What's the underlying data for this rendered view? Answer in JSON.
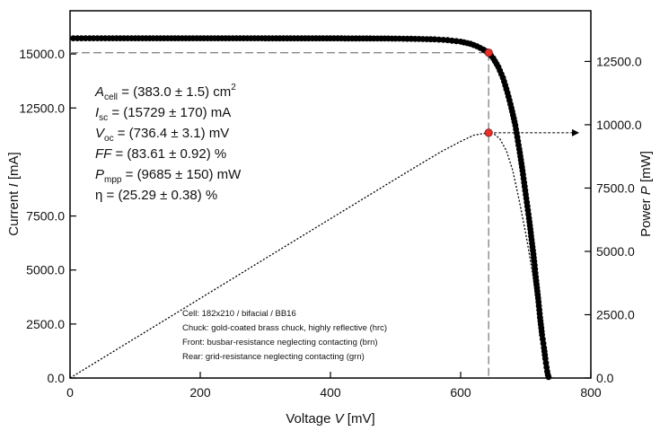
{
  "chart_data": {
    "type": "scatter",
    "xlabel_main": "Voltage ",
    "xlabel_sym": "V",
    "xlabel_unit": " [mV]",
    "ylabel_left_main": "Current ",
    "ylabel_left_sym": "I",
    "ylabel_left_unit": " [mA]",
    "ylabel_right_main": "Power ",
    "ylabel_right_sym": "P",
    "ylabel_right_unit": " [mW]",
    "xlim": [
      0,
      800
    ],
    "ylim_left": [
      0,
      17000
    ],
    "ylim_right": [
      0,
      14500
    ],
    "x_ticks": [
      {
        "value": 0,
        "label": "0"
      },
      {
        "value": 200,
        "label": "200"
      },
      {
        "value": 400,
        "label": "400"
      },
      {
        "value": 600,
        "label": "600"
      },
      {
        "value": 800,
        "label": "800"
      }
    ],
    "y_left_ticks": [
      {
        "value": 0,
        "label": "0.0"
      },
      {
        "value": 2500,
        "label": "2500.0"
      },
      {
        "value": 5000,
        "label": "5000.0"
      },
      {
        "value": 7500,
        "label": "7500.0"
      },
      {
        "value": 12500,
        "label": "12500.0"
      },
      {
        "value": 15000,
        "label": "15000.0"
      }
    ],
    "y_right_ticks": [
      {
        "value": 0,
        "label": "0.0"
      },
      {
        "value": 2500,
        "label": "2500.0"
      },
      {
        "value": 5000,
        "label": "5000.0"
      },
      {
        "value": 7500,
        "label": "7500.0"
      },
      {
        "value": 10000,
        "label": "10000.0"
      },
      {
        "value": 12500,
        "label": "12500.0"
      }
    ],
    "iv_curve": {
      "name": "I-V",
      "x": [
        5,
        30,
        60,
        100,
        150,
        200,
        250,
        300,
        350,
        400,
        450,
        500,
        530,
        560,
        580,
        600,
        615,
        625,
        635,
        643,
        650,
        658,
        665,
        672,
        678,
        684,
        690,
        695,
        700,
        705,
        709,
        713,
        716,
        719,
        722,
        725,
        728,
        730,
        732,
        733,
        734,
        735
      ],
      "y": [
        15729,
        15729,
        15729,
        15729,
        15728,
        15728,
        15727,
        15726,
        15725,
        15723,
        15720,
        15712,
        15700,
        15680,
        15640,
        15570,
        15470,
        15360,
        15200,
        15060,
        14800,
        14400,
        13900,
        13200,
        12500,
        11700,
        10600,
        9600,
        8500,
        7400,
        6400,
        5400,
        4500,
        3700,
        2800,
        2000,
        1400,
        900,
        500,
        300,
        150,
        50
      ]
    },
    "power_curve_x": [
      0,
      50,
      100,
      150,
      200,
      250,
      300,
      350,
      400,
      450,
      500,
      540,
      570,
      600,
      620,
      635,
      645,
      652,
      660,
      670,
      680,
      690,
      700,
      710,
      718,
      725,
      730,
      735
    ],
    "power_curve_y": [
      0,
      786,
      1573,
      2359,
      3146,
      3932,
      4718,
      5504,
      6289,
      7074,
      7856,
      8478,
      8938,
      9342,
      9585,
      9652,
      9685,
      9620,
      9450,
      8990,
      8200,
      7000,
      5700,
      4200,
      2800,
      1500,
      700,
      100
    ],
    "mpp": {
      "voltage": 643,
      "current": 15060,
      "power": 9685
    },
    "parameters": [
      {
        "symbol": "A",
        "sub": "cell",
        "text": " = (383.0 ± 1.5) cm",
        "sup": "2",
        "italic": true
      },
      {
        "symbol": "I",
        "sub": "sc",
        "text": " = (15729 ± 170) mA",
        "sup": "",
        "italic": true
      },
      {
        "symbol": "V",
        "sub": "oc",
        "text": " = (736.4 ± 3.1) mV",
        "sup": "",
        "italic": true
      },
      {
        "symbol": "FF",
        "sub": "",
        "text": " = (83.61 ± 0.92) %",
        "sup": "",
        "italic": true
      },
      {
        "symbol": "P",
        "sub": "mpp",
        "text": " = (9685 ± 150) mW",
        "sup": "",
        "italic": true
      },
      {
        "symbol": "η",
        "sub": "",
        "text": " = (25.29 ± 0.38) %",
        "sup": "",
        "italic": false
      }
    ],
    "notes": [
      "Cell: 182x210 / bifacial / BB16",
      "Chuck: gold-coated brass chuck, highly reflective (hrc)",
      "Front: busbar-resistance neglecting contacting (brn)",
      "Rear: grid-resistance neglecting contacting (grn)"
    ],
    "colors": {
      "points": "#000000",
      "mpp_marker": "#e8302a",
      "guide_line": "#888888",
      "axis": "#000000"
    }
  }
}
